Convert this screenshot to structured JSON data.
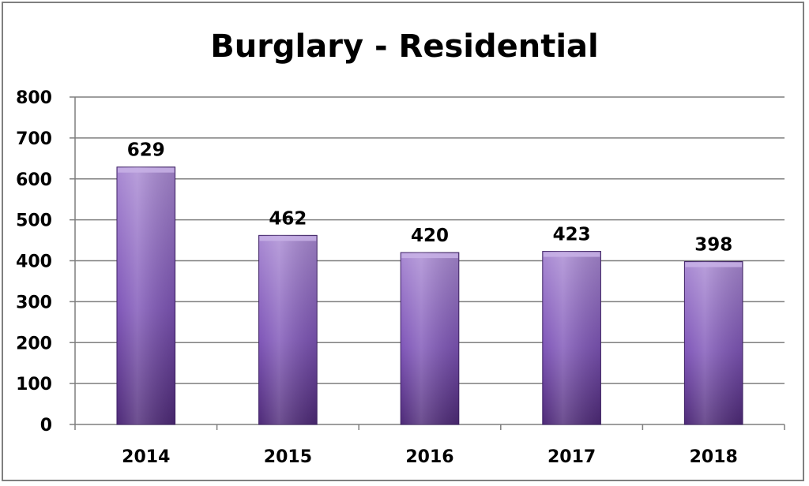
{
  "chart_data": {
    "type": "bar",
    "title": "Burglary - Residential",
    "categories": [
      "2014",
      "2015",
      "2016",
      "2017",
      "2018"
    ],
    "values": [
      629,
      462,
      420,
      423,
      398
    ],
    "data_labels": [
      "629",
      "462",
      "420",
      "423",
      "398"
    ],
    "y_ticks": [
      "0",
      "100",
      "200",
      "300",
      "400",
      "500",
      "600",
      "700",
      "800"
    ],
    "ylim": [
      0,
      800
    ],
    "grid": true,
    "legend": "none",
    "colors": {
      "bar_top": "#a98ad3",
      "bar_mid": "#7f56b8",
      "bar_bottom": "#4e2a78",
      "bar_edge": "#3f2266",
      "grid": "#7f7f7f",
      "axis": "#7f7f7f"
    }
  }
}
